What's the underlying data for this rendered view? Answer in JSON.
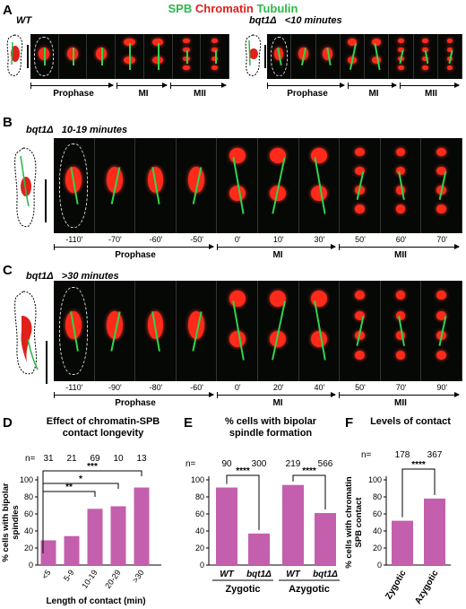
{
  "legend": {
    "spb": "SPB",
    "chromatin": "Chromatin",
    "tubulin": "Tubulin"
  },
  "colors": {
    "spb": "#2db84a",
    "chromatin": "#e0201a",
    "tubulin": "#2db84a",
    "bar": "#c45fae",
    "arrowhead": "#f0b400"
  },
  "panels": {
    "A": {
      "letter": "A",
      "left": {
        "genotype": "WT",
        "phases": [
          "Prophase",
          "MI",
          "MII"
        ]
      },
      "right": {
        "genotype": "bqt1Δ",
        "condition": "<10 minutes",
        "phases": [
          "Prophase",
          "MI",
          "MII"
        ]
      }
    },
    "B": {
      "letter": "B",
      "genotype": "bqt1Δ",
      "condition": "10-19 minutes",
      "times": [
        "-110'",
        "-70'",
        "-60'",
        "-50'",
        "0'",
        "10'",
        "30'",
        "50'",
        "60'",
        "70'"
      ],
      "phases": [
        "Prophase",
        "MI",
        "MII"
      ]
    },
    "C": {
      "letter": "C",
      "genotype": "bqt1Δ",
      "condition": ">30 minutes",
      "times": [
        "-110'",
        "-90'",
        "-80'",
        "-60'",
        "0'",
        "20'",
        "40'",
        "50'",
        "70'",
        "90'"
      ],
      "phases": [
        "Prophase",
        "MI",
        "MII"
      ]
    }
  },
  "charts": {
    "D": {
      "letter": "D",
      "title_line1": "Effect of  chromatin-SPB",
      "title_line2": "contact longevity",
      "n_label": "n=",
      "significance": [
        "***",
        "*",
        "**"
      ]
    },
    "E": {
      "letter": "E",
      "title_line1": "% cells with bipolar",
      "title_line2": "spindle formation",
      "n_label": "n=",
      "significance": [
        "****",
        "****"
      ],
      "groups": [
        "Zygotic",
        "Azygotic"
      ]
    },
    "F": {
      "letter": "F",
      "title_line1": "Levels of contact",
      "n_label": "n=",
      "significance": [
        "****"
      ]
    }
  },
  "chart_data": [
    {
      "type": "bar",
      "title": "Effect of  chromatin-SPB contact longevity",
      "categories": [
        "<5",
        "5-9",
        "10-19",
        "20-29",
        ">30"
      ],
      "values": [
        29,
        34,
        66,
        69,
        91
      ],
      "n": [
        "31",
        "21",
        "69",
        "10",
        "13"
      ],
      "xlabel": "Length of contact (min)",
      "ylabel": "% cells with bipolar spindles",
      "ylim": [
        0,
        100
      ],
      "yticks": [
        "0",
        "20",
        "40",
        "60",
        "80",
        "100"
      ]
    },
    {
      "type": "bar",
      "title": "% cells with bipolar spindle formation",
      "categories": [
        "WT",
        "bqt1Δ",
        "WT",
        "bqt1Δ"
      ],
      "values": [
        91,
        37,
        94,
        61
      ],
      "n": [
        "90",
        "300",
        "219",
        "566"
      ],
      "groups": [
        "Zygotic",
        "Azygotic"
      ],
      "ylim": [
        0,
        100
      ],
      "yticks": [
        "0",
        "20",
        "40",
        "60",
        "80",
        "100"
      ]
    },
    {
      "type": "bar",
      "title": "Levels of contact",
      "categories": [
        "Zygotic",
        "Azygotic"
      ],
      "values": [
        52,
        78
      ],
      "n": [
        "178",
        "367"
      ],
      "ylabel": "% cells with chromatin SPB contact",
      "ylim": [
        0,
        100
      ],
      "yticks": [
        "0",
        "20",
        "40",
        "60",
        "80",
        "100"
      ]
    }
  ]
}
